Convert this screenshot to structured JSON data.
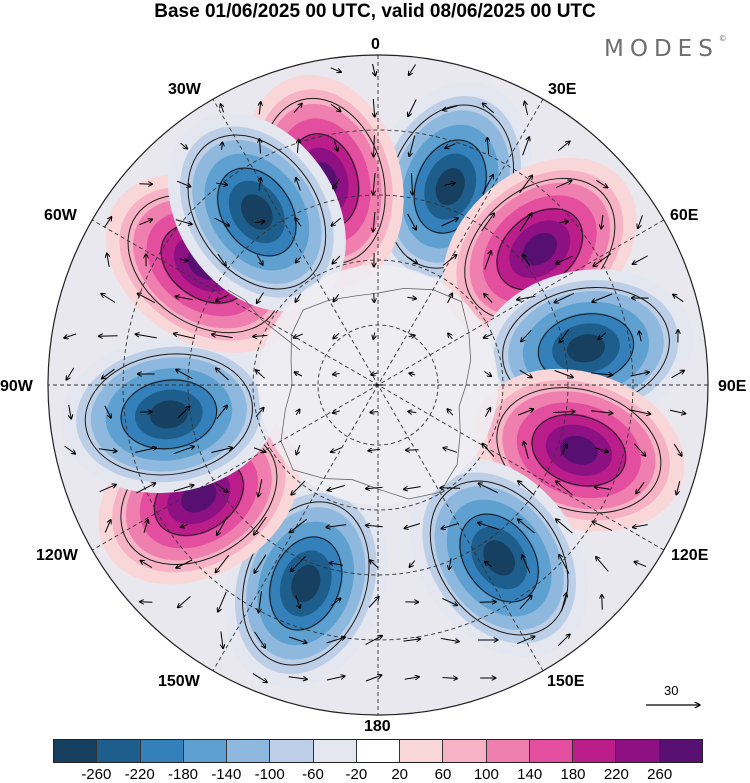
{
  "title": "Base 01/06/2025 00 UTC, valid 08/06/2025 00 UTC",
  "brand": "MODES",
  "brand_mark": "©",
  "map": {
    "projection": "south-polar-stereographic",
    "field": "geopotential height anomaly with wind vectors",
    "longitude_labels": [
      "0",
      "30E",
      "60E",
      "90E",
      "120E",
      "150E",
      "180",
      "150W",
      "120W",
      "90W",
      "60W",
      "30W"
    ],
    "reference_vector": "30",
    "features": [
      {
        "type": "negative",
        "lon": 20,
        "peak": "-220"
      },
      {
        "type": "positive",
        "lon": 345,
        "peak": "220"
      },
      {
        "type": "positive",
        "lon": 50,
        "peak": "220"
      },
      {
        "type": "negative",
        "lon": 80,
        "peak": "-260"
      },
      {
        "type": "positive",
        "lon": 108,
        "peak": "260"
      },
      {
        "type": "negative",
        "lon": 145,
        "peak": "-260"
      },
      {
        "type": "negative",
        "lon": 200,
        "peak": "-220"
      },
      {
        "type": "positive",
        "lon": 238,
        "peak": "260"
      },
      {
        "type": "negative",
        "lon": 262,
        "peak": "-260"
      },
      {
        "type": "positive",
        "lon": 305,
        "peak": "260"
      },
      {
        "type": "negative",
        "lon": 325,
        "peak": "-260"
      }
    ]
  },
  "colorbar": {
    "ticks": [
      "-260",
      "-220",
      "-180",
      "-140",
      "-100",
      "-60",
      "-20",
      "20",
      "60",
      "100",
      "140",
      "180",
      "220",
      "260"
    ],
    "colors": [
      "#173f5f",
      "#1d5e8c",
      "#3480ba",
      "#5ea0cf",
      "#8eb8dd",
      "#bccfe6",
      "#e4e6f0",
      "#ffffff",
      "#f9d7d9",
      "#f6b3c6",
      "#ef7fae",
      "#e34f9e",
      "#bb1e8a",
      "#8e1184",
      "#571071"
    ]
  }
}
